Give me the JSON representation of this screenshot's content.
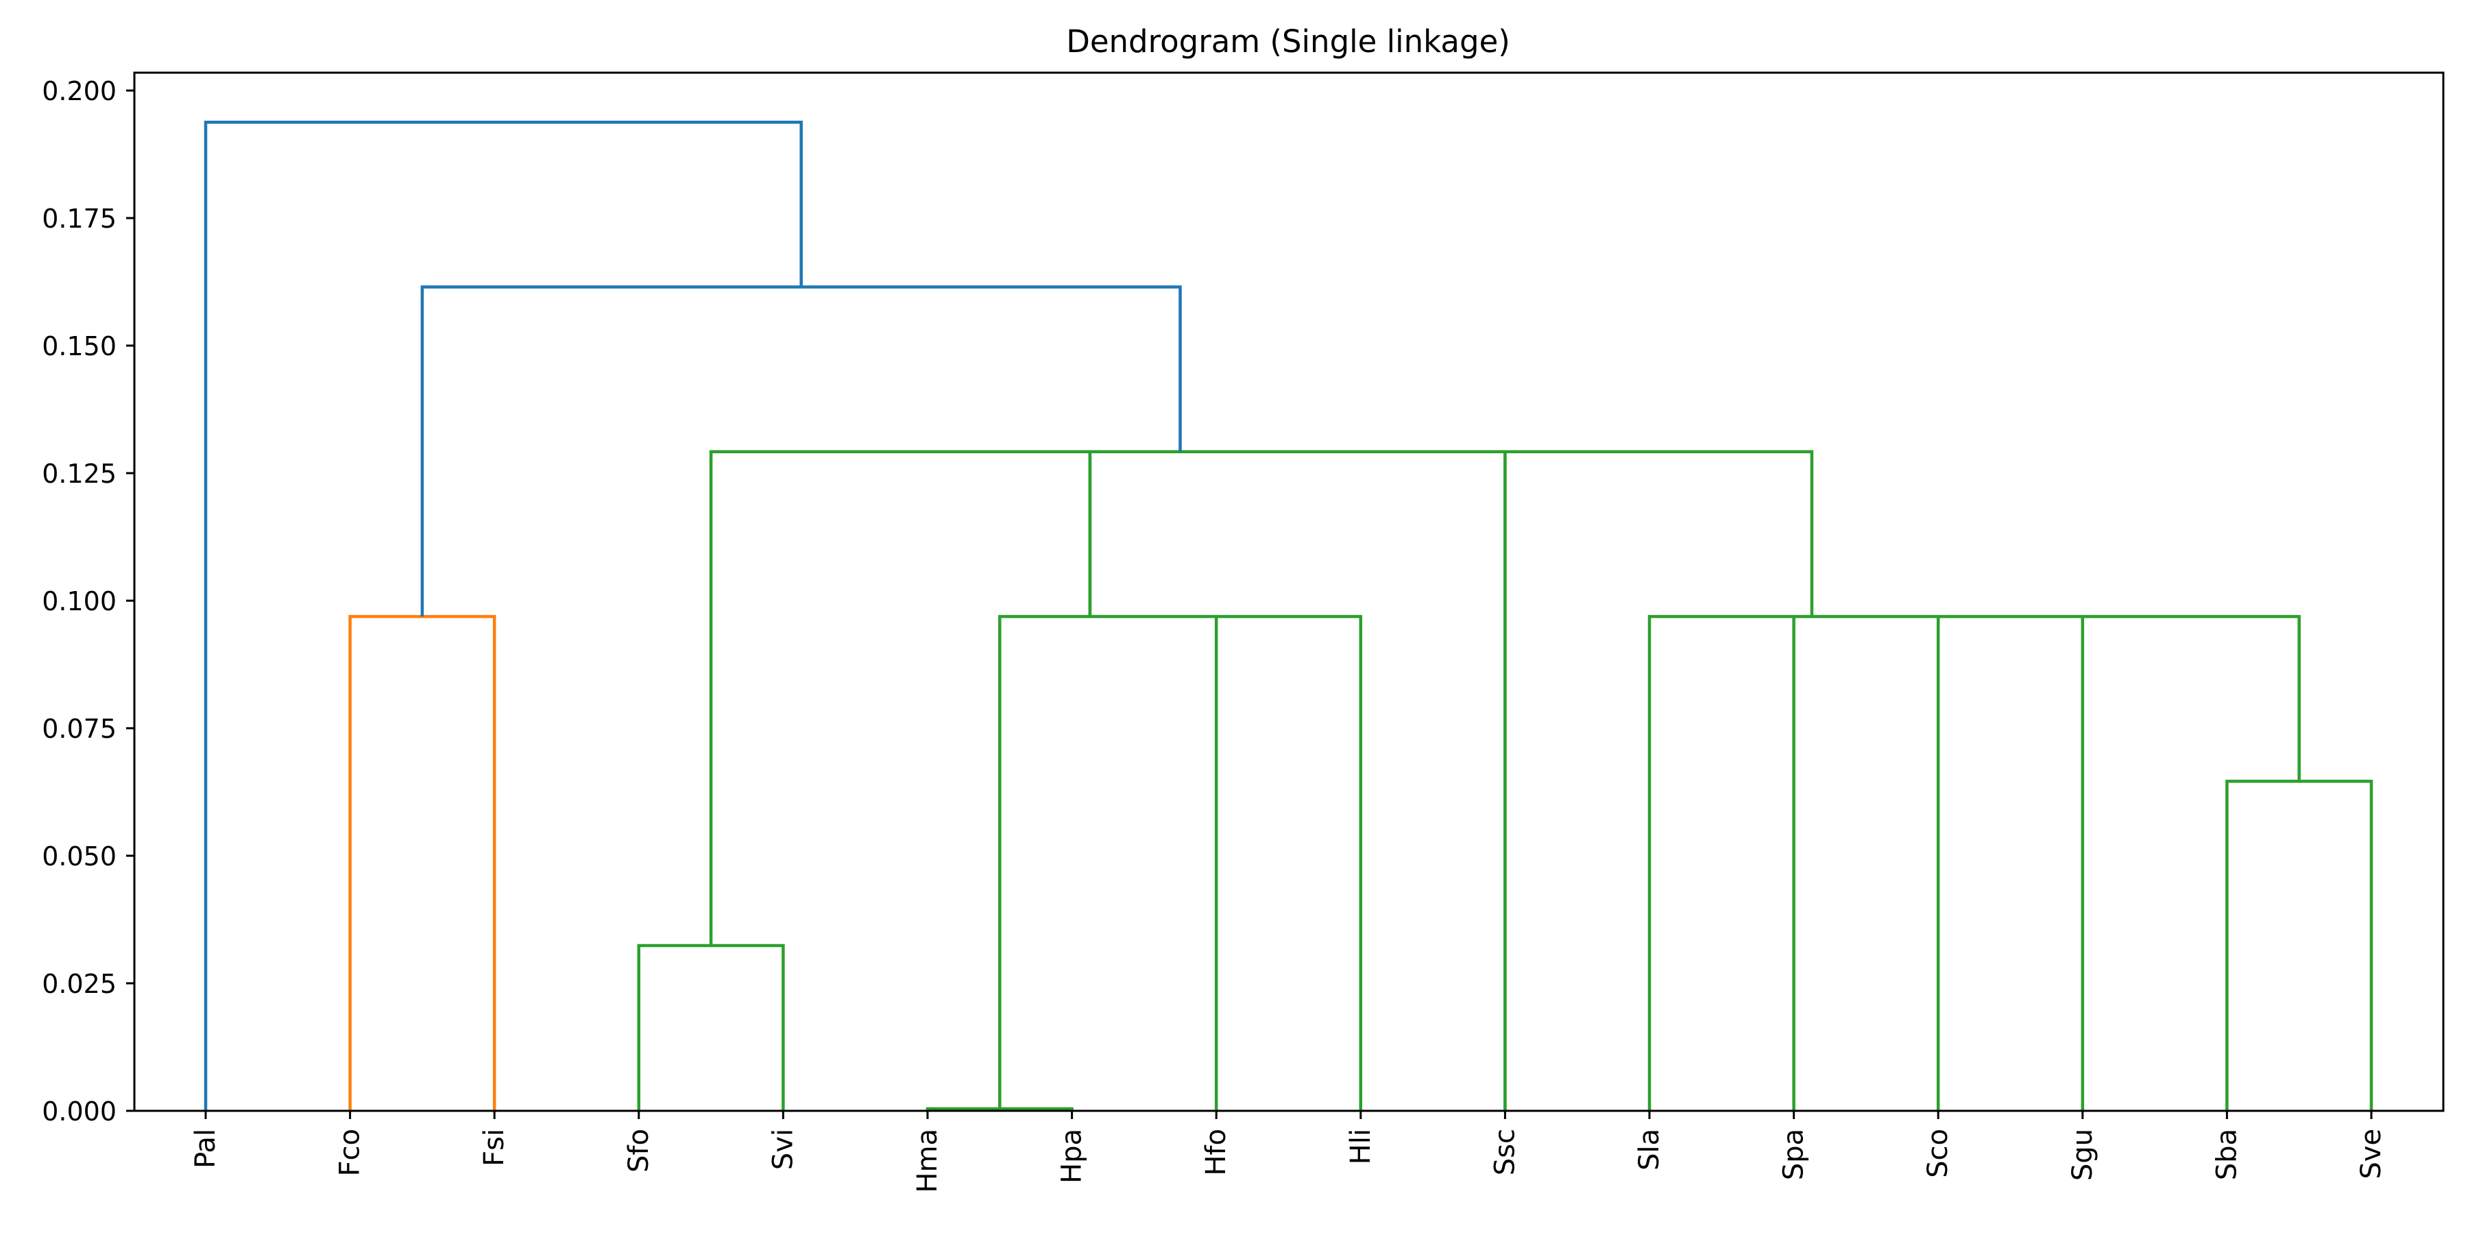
{
  "chart_data": {
    "type": "dendrogram",
    "title": "Dendrogram (Single linkage)",
    "xlabel": "",
    "ylabel": "",
    "ylim": [
      0,
      0.2035
    ],
    "yticks": [
      0.0,
      0.025,
      0.05,
      0.075,
      0.1,
      0.125,
      0.15,
      0.175,
      0.2
    ],
    "ytick_labels": [
      "0.000",
      "0.025",
      "0.050",
      "0.075",
      "0.100",
      "0.125",
      "0.150",
      "0.175",
      "0.200"
    ],
    "leaves": [
      "Pal",
      "Fco",
      "Fsi",
      "Sfo",
      "Svi",
      "Hma",
      "Hpa",
      "Hfo",
      "Hli",
      "Ssc",
      "Sla",
      "Spa",
      "Sco",
      "Sgu",
      "Sba",
      "Sve"
    ],
    "grid": false,
    "colors": {
      "above_threshold": "#1f77b4",
      "cluster_1": "#ff7f0e",
      "cluster_2": "#2ca02c"
    },
    "links": [
      {
        "x": [
          6,
          6,
          7,
          7
        ],
        "y": [
          0.0,
          0.0004,
          0.0004,
          0.0
        ],
        "color": "cluster_2"
      },
      {
        "x": [
          4,
          4,
          5,
          5
        ],
        "y": [
          0.0,
          0.0324,
          0.0324,
          0.0
        ],
        "color": "cluster_2"
      },
      {
        "x": [
          15,
          15,
          16,
          16
        ],
        "y": [
          0.0,
          0.0646,
          0.0646,
          0.0
        ],
        "color": "cluster_2"
      },
      {
        "x": [
          2,
          2,
          3,
          3
        ],
        "y": [
          0.0,
          0.0969,
          0.0969,
          0.0
        ],
        "color": "cluster_1"
      },
      {
        "x": [
          6.5,
          6.5,
          8,
          8
        ],
        "y": [
          0.0004,
          0.0969,
          0.0969,
          0.0
        ],
        "color": "cluster_2"
      },
      {
        "x": [
          8,
          8,
          9,
          9
        ],
        "y": [
          0.0969,
          0.0969,
          0.0969,
          0.0
        ],
        "color": "cluster_2"
      },
      {
        "x": [
          11,
          11,
          12,
          12
        ],
        "y": [
          0.0,
          0.0969,
          0.0969,
          0.0
        ],
        "color": "cluster_2"
      },
      {
        "x": [
          12,
          12,
          13,
          13
        ],
        "y": [
          0.0969,
          0.0969,
          0.0969,
          0.0
        ],
        "color": "cluster_2"
      },
      {
        "x": [
          13,
          13,
          14,
          14
        ],
        "y": [
          0.0969,
          0.0969,
          0.0969,
          0.0
        ],
        "color": "cluster_2"
      },
      {
        "x": [
          14,
          14,
          15.5,
          15.5
        ],
        "y": [
          0.0969,
          0.0969,
          0.0969,
          0.0646
        ],
        "color": "cluster_2"
      },
      {
        "x": [
          4.5,
          4.5,
          7.125,
          7.125
        ],
        "y": [
          0.0324,
          0.1292,
          0.1292,
          0.0969
        ],
        "color": "cluster_2"
      },
      {
        "x": [
          7.125,
          7.125,
          10,
          10
        ],
        "y": [
          0.0969,
          0.1292,
          0.1292,
          0.0
        ],
        "color": "cluster_2"
      },
      {
        "x": [
          10,
          10,
          12.125,
          12.125
        ],
        "y": [
          0.0,
          0.1292,
          0.1292,
          0.0969
        ],
        "color": "cluster_2"
      },
      {
        "x": [
          2.5,
          2.5,
          7.75,
          7.75
        ],
        "y": [
          0.0969,
          0.1615,
          0.1615,
          0.1292
        ],
        "color": "above_threshold"
      },
      {
        "x": [
          1,
          1,
          5.125,
          5.125
        ],
        "y": [
          0.0,
          0.1938,
          0.1938,
          0.1615
        ],
        "color": "above_threshold"
      }
    ]
  }
}
